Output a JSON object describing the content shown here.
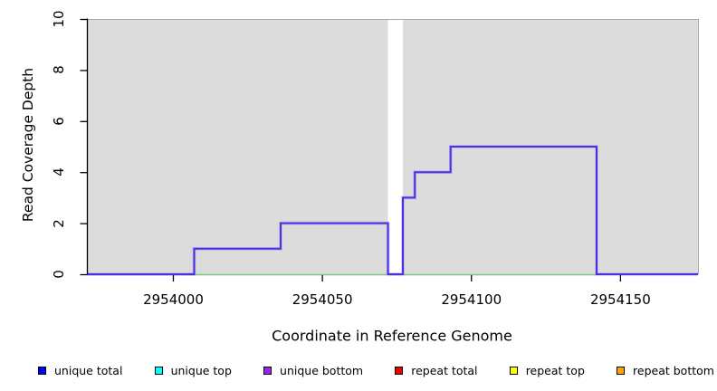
{
  "chart_data": {
    "type": "line",
    "subtype": "step-coverage",
    "title": "",
    "xlabel": "Coordinate in Reference Genome",
    "ylabel": "Read Coverage Depth",
    "xlim": [
      2953971,
      2954176
    ],
    "ylim": [
      0,
      10
    ],
    "x_ticks": [
      2954000,
      2954050,
      2954100,
      2954150
    ],
    "x_tick_labels": [
      "2954000",
      "2954050",
      "2954100",
      "2954150"
    ],
    "y_ticks": [
      0,
      2,
      4,
      6,
      8,
      10
    ],
    "y_tick_labels": [
      "0",
      "2",
      "4",
      "6",
      "8",
      "10"
    ],
    "grid": false,
    "plot_background_color": "#dcdcdc",
    "plot_edge_color": "#ababab",
    "gap_region": {
      "from": 2954072,
      "to": 2954077,
      "color": "#ffffff",
      "note": "white vertical band, no reference data"
    },
    "series": [
      {
        "name": "coverage-step-curve",
        "color": "#4a30e0",
        "halo_color": "#a493ef",
        "segments": [
          {
            "from": 2953971,
            "to": 2954007,
            "depth": 0
          },
          {
            "from": 2954007,
            "to": 2954036,
            "depth": 1
          },
          {
            "from": 2954036,
            "to": 2954072,
            "depth": 2
          },
          {
            "from": 2954072,
            "to": 2954077,
            "depth": 0
          },
          {
            "from": 2954077,
            "to": 2954081,
            "depth": 3
          },
          {
            "from": 2954081,
            "to": 2954093,
            "depth": 4
          },
          {
            "from": 2954093,
            "to": 2954142,
            "depth": 5
          },
          {
            "from": 2954142,
            "to": 2954176,
            "depth": 0
          }
        ]
      },
      {
        "name": "zero-baseline",
        "color": "#77c97c",
        "from": 2953971,
        "to": 2954142,
        "depth": 0
      }
    ],
    "legend_position": "bottom",
    "legend": [
      {
        "label": "unique total",
        "color": "#0000ff"
      },
      {
        "label": "unique top",
        "color": "#00ffff"
      },
      {
        "label": "unique bottom",
        "color": "#a020f0"
      },
      {
        "label": "repeat total",
        "color": "#ee0000"
      },
      {
        "label": "repeat top",
        "color": "#ffff00"
      },
      {
        "label": "repeat bottom",
        "color": "#ffa500"
      }
    ]
  }
}
